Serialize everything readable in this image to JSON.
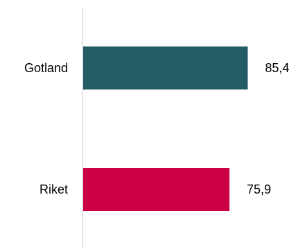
{
  "chart_data": {
    "type": "bar",
    "orientation": "horizontal",
    "categories": [
      "Gotland",
      "Riket"
    ],
    "values": [
      85.4,
      75.9
    ],
    "value_labels": [
      "85,4",
      "75,9"
    ],
    "colors": [
      "#245c63",
      "#cc0044"
    ],
    "xlim": [
      0,
      100
    ],
    "grid": false,
    "legend": "none",
    "title": "",
    "xlabel": "",
    "ylabel": ""
  }
}
